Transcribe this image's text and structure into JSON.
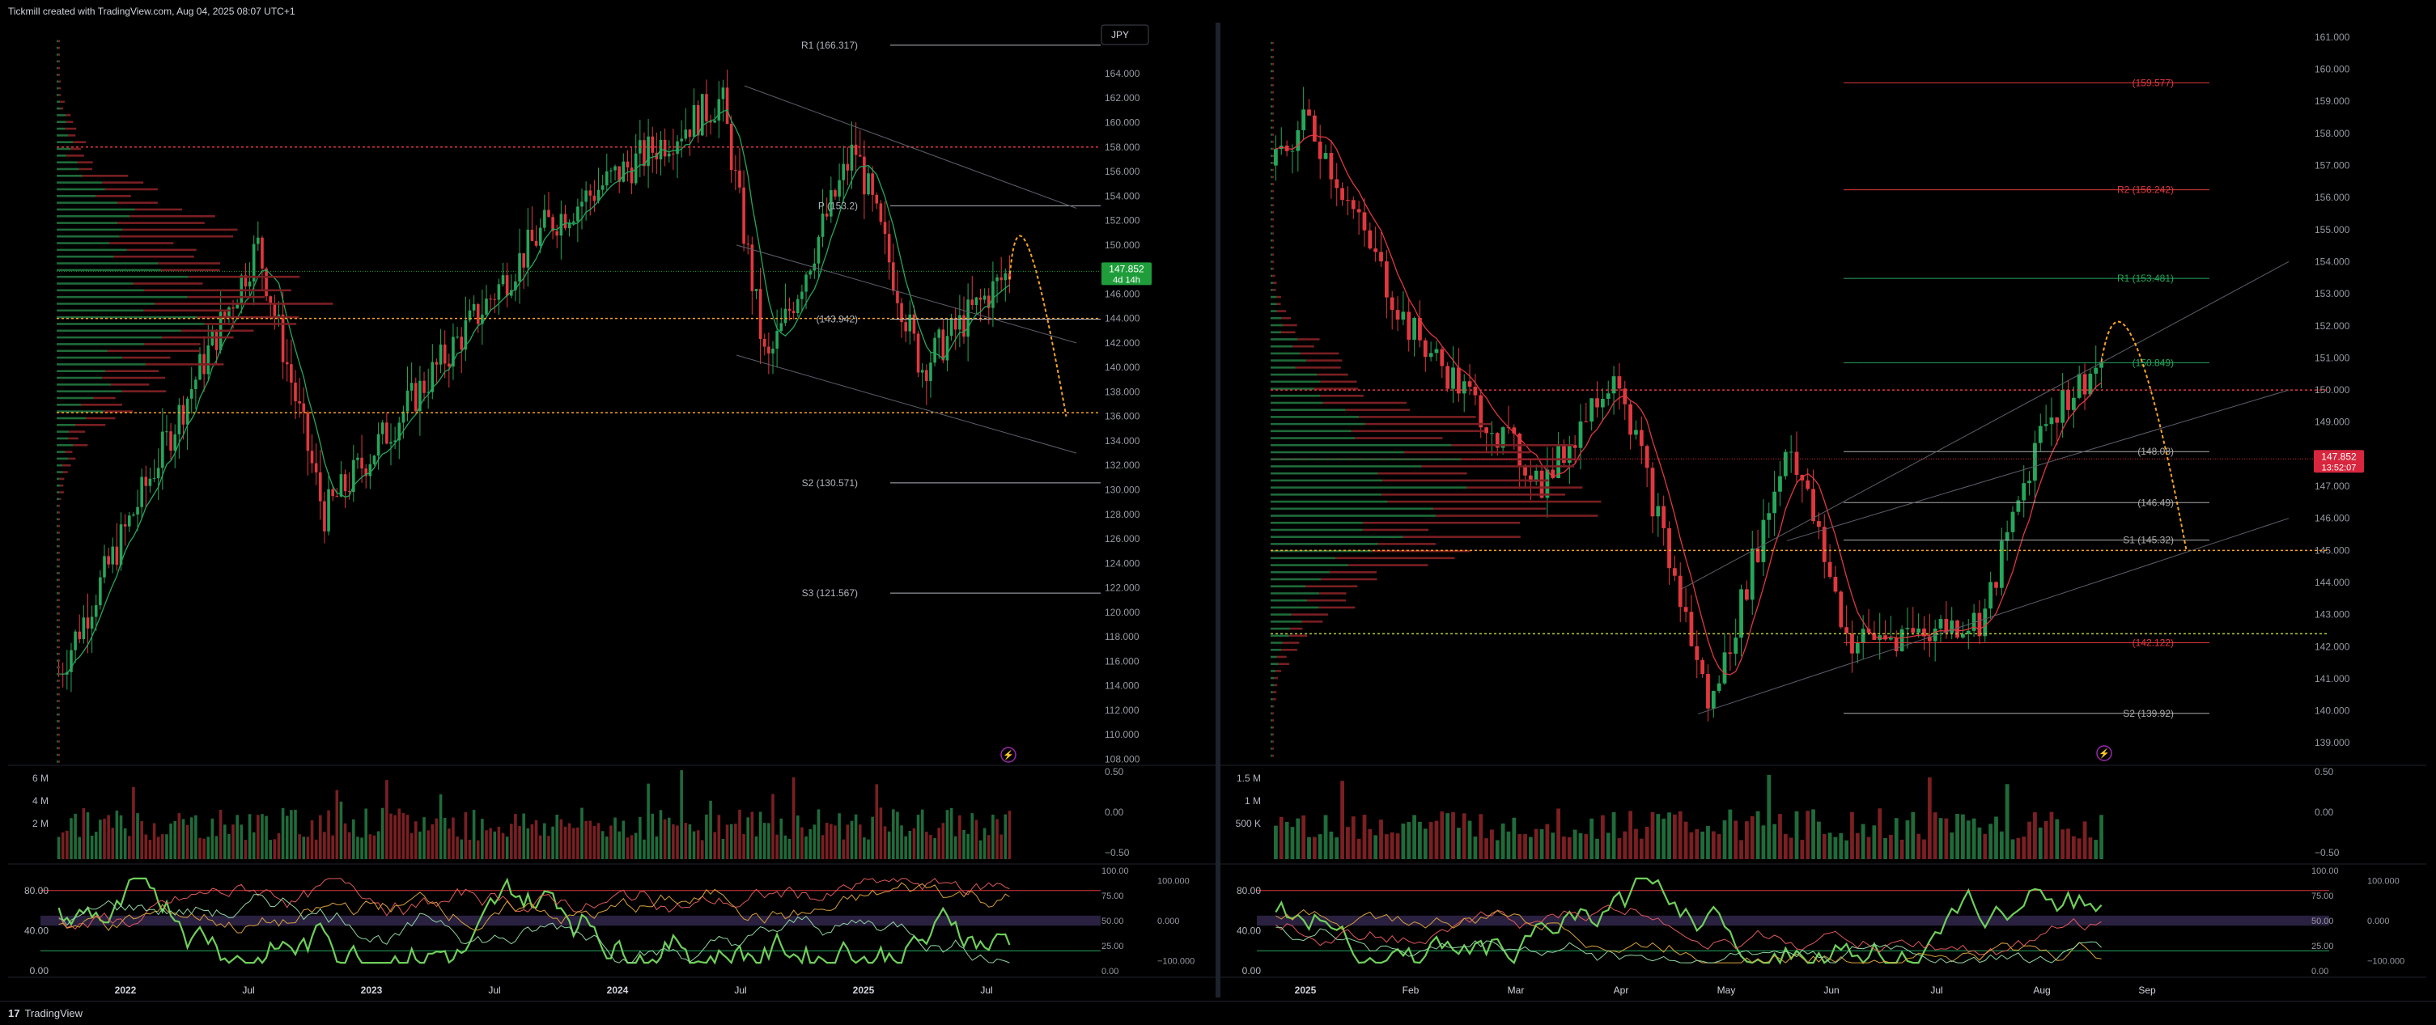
{
  "header": {
    "attribution": "Tickmill created with TradingView.com, Aug 04, 2025 08:07 UTC+1"
  },
  "footer": {
    "brand": "TradingView",
    "logo_text": "17"
  },
  "colors": {
    "up": "#26a65b",
    "down": "#e0383e",
    "orange": "#f7a325",
    "grid": "#1e222d"
  },
  "chart_data": [
    {
      "type": "candlestick",
      "timeframe": "weekly",
      "currency_badge": "JPY",
      "price_badge": {
        "value": "147.852",
        "countdown": "4d 14h"
      },
      "y_ticks": [
        "164.000",
        "162.000",
        "160.000",
        "158.000",
        "156.000",
        "154.000",
        "152.000",
        "150.000",
        "148.000",
        "146.000",
        "144.000",
        "142.000",
        "140.000",
        "138.000",
        "136.000",
        "134.000",
        "132.000",
        "130.000",
        "128.000",
        "126.000",
        "124.000",
        "122.000",
        "120.000",
        "118.000",
        "116.000",
        "114.000",
        "112.000",
        "110.000",
        "108.000"
      ],
      "x_ticks": [
        "2022",
        "Jul",
        "2023",
        "Jul",
        "2024",
        "Jul",
        "2025",
        "Jul"
      ],
      "ylim": [
        107.5,
        167.5
      ],
      "pivot_labels": [
        {
          "label": "R1 (166.317)",
          "value": 166.317
        },
        {
          "label": "P (153.2)",
          "value": 153.2
        },
        {
          "label": "(143.942)",
          "value": 143.942
        },
        {
          "label": "S2 (130.571)",
          "value": 130.571
        },
        {
          "label": "S3 (121.567)",
          "value": 121.567
        }
      ],
      "horizontal_levels": [
        {
          "value": 158.0,
          "color": "#e0383e",
          "style": "dotted"
        },
        {
          "value": 144.0,
          "color": "#f7a325",
          "style": "dotted"
        },
        {
          "value": 136.3,
          "color": "#f7a325",
          "style": "dotted"
        }
      ],
      "volume": {
        "ticks": [
          "6 M",
          "4 M",
          "2 M"
        ]
      },
      "volume_oscillator": {
        "ticks": [
          "0.50",
          "0.00",
          "−0.50"
        ]
      },
      "stochastic": {
        "ticks": [
          "80.00",
          "40.00",
          "0.00"
        ],
        "right_ticks": [
          "100.00",
          "75.00",
          "50.00",
          "25.00",
          "0.00"
        ],
        "far_ticks": [
          "100.000",
          "0.000",
          "−100.000"
        ]
      },
      "anchors": [
        {
          "date": "2022-01",
          "price": 115.0
        },
        {
          "date": "2022-10",
          "price": 150.0
        },
        {
          "date": "2023-01",
          "price": 128.0
        },
        {
          "date": "2023-11",
          "price": 151.5
        },
        {
          "date": "2024-07",
          "price": 161.9
        },
        {
          "date": "2024-09",
          "price": 140.0
        },
        {
          "date": "2025-01",
          "price": 158.0
        },
        {
          "date": "2025-04",
          "price": 140.0
        },
        {
          "date": "2025-08",
          "price": 147.85
        }
      ]
    },
    {
      "type": "candlestick",
      "timeframe": "daily",
      "price_badge": {
        "value": "147.852",
        "countdown": "13:52:07"
      },
      "y_ticks": [
        "161.000",
        "160.000",
        "159.000",
        "158.000",
        "157.000",
        "156.000",
        "155.000",
        "154.000",
        "153.000",
        "152.000",
        "151.000",
        "150.000",
        "149.000",
        "148.000",
        "147.000",
        "146.000",
        "145.000",
        "144.000",
        "143.000",
        "142.000",
        "141.000",
        "140.000",
        "139.000"
      ],
      "x_ticks": [
        "2025",
        "Feb",
        "Mar",
        "Apr",
        "May",
        "Jun",
        "Jul",
        "Aug",
        "Sep"
      ],
      "ylim": [
        138.3,
        161.2
      ],
      "pivot_labels": [
        {
          "label": "(159.577)",
          "value": 159.577,
          "color": "#e0383e"
        },
        {
          "label": "R2 (156.242)",
          "value": 156.242,
          "color": "#e0383e"
        },
        {
          "label": "R1 (153.481)",
          "value": 153.481,
          "color": "#26a65b"
        },
        {
          "label": "(150.849)",
          "value": 150.849,
          "color": "#26a65b"
        },
        {
          "label": "(148.08)",
          "value": 148.08,
          "color": "#aaaaaa"
        },
        {
          "label": "(146.49)",
          "value": 146.49,
          "color": "#aaaaaa"
        },
        {
          "label": "S1 (145.32)",
          "value": 145.32,
          "color": "#aaaaaa"
        },
        {
          "label": "(142.122)",
          "value": 142.122,
          "color": "#e0383e"
        },
        {
          "label": "S2 (139.92)",
          "value": 139.92,
          "color": "#aaaaaa"
        }
      ],
      "horizontal_levels": [
        {
          "value": 150.0,
          "color": "#e0383e",
          "style": "dotted"
        },
        {
          "value": 145.0,
          "color": "#f7a325",
          "style": "dotted"
        },
        {
          "value": 142.4,
          "color": "#b5cc3a",
          "style": "dotted"
        }
      ],
      "volume": {
        "ticks": [
          "1.5 M",
          "1 M",
          "500 K"
        ]
      },
      "volume_oscillator": {
        "ticks": [
          "0.50",
          "0.00",
          "−0.50"
        ]
      },
      "stochastic": {
        "ticks": [
          "80.00",
          "40.00",
          "0.00"
        ],
        "right_ticks": [
          "100.00",
          "75.00",
          "50.00",
          "25.00",
          "0.00"
        ],
        "far_ticks": [
          "100.000",
          "0.000",
          "−100.000"
        ]
      },
      "anchors": [
        {
          "date": "2025-01-02",
          "price": 157.0
        },
        {
          "date": "2025-01-10",
          "price": 158.5
        },
        {
          "date": "2025-02-05",
          "price": 152.0
        },
        {
          "date": "2025-03-10",
          "price": 147.0
        },
        {
          "date": "2025-03-28",
          "price": 150.8
        },
        {
          "date": "2025-04-22",
          "price": 140.0
        },
        {
          "date": "2025-05-12",
          "price": 148.5
        },
        {
          "date": "2025-05-27",
          "price": 142.1
        },
        {
          "date": "2025-07-01",
          "price": 142.8
        },
        {
          "date": "2025-07-16",
          "price": 149.0
        },
        {
          "date": "2025-07-31",
          "price": 150.8
        },
        {
          "date": "2025-08-01",
          "price": 147.85
        }
      ]
    }
  ]
}
